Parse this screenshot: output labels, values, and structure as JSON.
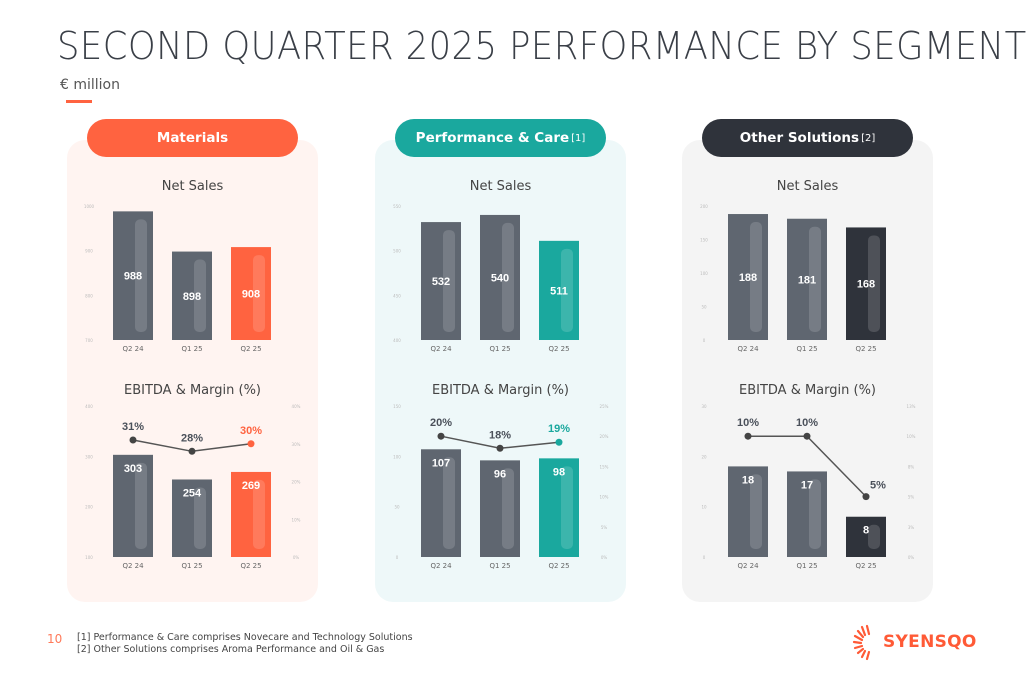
{
  "header": {
    "title": "SECOND QUARTER 2025 PERFORMANCE BY SEGMENT",
    "unit": "€ million"
  },
  "footer": {
    "page_number": "10",
    "notes": [
      "[1] Performance & Care comprises Novecare and Technology Solutions",
      "[2] Other Solutions comprises Aroma Performance and Oil & Gas"
    ],
    "logo_text": "SYENSQO"
  },
  "colors": {
    "gray_bar": "#5f6670",
    "materials": "#ff6340",
    "performance_care": "#1aa89e",
    "other_solutions": "#2f333b"
  },
  "chart_data": [
    {
      "segment": "Materials",
      "footnote": "",
      "accent": "#ff6340",
      "panel_bg": "#fff4f1",
      "net_sales": {
        "type": "bar",
        "title": "Net Sales",
        "categories": [
          "Q2 24",
          "Q1 25",
          "Q2 25"
        ],
        "values": [
          988,
          898,
          908
        ],
        "ylim": [
          700,
          1000
        ],
        "yticks": [
          700,
          800,
          900,
          1000
        ]
      },
      "ebitda": {
        "type": "bar+line",
        "title": "EBITDA & Margin (%)",
        "categories": [
          "Q2 24",
          "Q1 25",
          "Q2 25"
        ],
        "values": [
          303,
          254,
          269
        ],
        "ylim": [
          100,
          400
        ],
        "yticks": [
          100,
          200,
          300,
          400
        ],
        "margin": [
          31,
          28,
          30
        ],
        "margin_labels": [
          "31%",
          "28%",
          "30%"
        ],
        "margin_lim": [
          0,
          40
        ],
        "margin_ticks": [
          "0%",
          "10%",
          "20%",
          "30%",
          "40%"
        ]
      }
    },
    {
      "segment": "Performance & Care",
      "footnote": "[1]",
      "accent": "#1aa89e",
      "panel_bg": "#eef8f9",
      "net_sales": {
        "type": "bar",
        "title": "Net Sales",
        "categories": [
          "Q2 24",
          "Q1 25",
          "Q2 25"
        ],
        "values": [
          532,
          540,
          511
        ],
        "ylim": [
          400,
          550
        ],
        "yticks": [
          400,
          450,
          500,
          550
        ]
      },
      "ebitda": {
        "type": "bar+line",
        "title": "EBITDA & Margin (%)",
        "categories": [
          "Q2 24",
          "Q1 25",
          "Q2 25"
        ],
        "values": [
          107,
          96,
          98
        ],
        "ylim": [
          0,
          150
        ],
        "yticks": [
          0,
          50,
          100,
          150
        ],
        "margin": [
          20,
          18,
          19
        ],
        "margin_labels": [
          "20%",
          "18%",
          "19%"
        ],
        "margin_lim": [
          0,
          25
        ],
        "margin_ticks": [
          "0%",
          "5%",
          "10%",
          "15%",
          "20%",
          "25%"
        ]
      }
    },
    {
      "segment": "Other Solutions",
      "footnote": "[2]",
      "accent": "#2f333b",
      "panel_bg": "#f4f4f4",
      "net_sales": {
        "type": "bar",
        "title": "Net Sales",
        "categories": [
          "Q2 24",
          "Q1 25",
          "Q2 25"
        ],
        "values": [
          188,
          181,
          168
        ],
        "ylim": [
          0,
          200
        ],
        "yticks": [
          0,
          50,
          100,
          150,
          200
        ]
      },
      "ebitda": {
        "type": "bar+line",
        "title": "EBITDA & Margin (%)",
        "categories": [
          "Q2 24",
          "Q1 25",
          "Q2 25"
        ],
        "values": [
          18,
          17,
          8
        ],
        "ylim": [
          0,
          30
        ],
        "yticks": [
          0,
          10,
          20,
          30
        ],
        "margin": [
          10,
          10,
          5
        ],
        "margin_labels": [
          "10%",
          "10%",
          "5%"
        ],
        "margin_lim": [
          0,
          12.5
        ],
        "margin_ticks": [
          "0%",
          "3%",
          "5%",
          "8%",
          "10%",
          "13%"
        ]
      }
    }
  ]
}
